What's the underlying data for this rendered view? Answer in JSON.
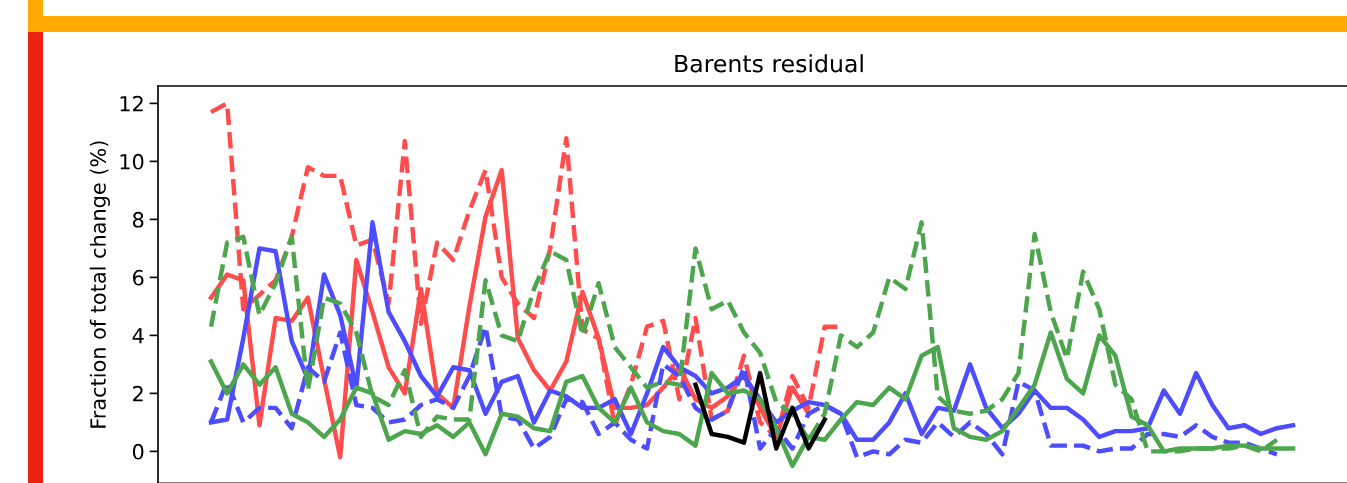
{
  "chart_data": {
    "type": "line",
    "title": "Barents residual",
    "ylabel": "Fraction of total change (%)",
    "categories": [
      null,
      null,
      null,
      null,
      null,
      null,
      null,
      null,
      null,
      null,
      null,
      null,
      null,
      null,
      null,
      null,
      null,
      null,
      null,
      null,
      null,
      null,
      null,
      null,
      null,
      null,
      null,
      null,
      null,
      null,
      null,
      null,
      null,
      null,
      null,
      null,
      null,
      null,
      null,
      null,
      null,
      null,
      null,
      null,
      null,
      null,
      null,
      null,
      null,
      null,
      null,
      null,
      null,
      null,
      null,
      null,
      null,
      null,
      null,
      null,
      null,
      null,
      null,
      null,
      null,
      null,
      null,
      null
    ],
    "ylim": [
      -1.1,
      12.6
    ],
    "yticks": [
      0,
      2,
      4,
      6,
      8,
      10,
      12
    ],
    "tick_labels": "y",
    "series": [
      {
        "color": "#ff4d4d",
        "line_style": "solid",
        "values": [
          5.3,
          6.1,
          5.9,
          0.9,
          4.6,
          4.5,
          5.3,
          2.5,
          -0.2,
          6.6,
          4.8,
          2.9,
          2.0,
          5.6,
          2.0,
          1.5,
          5.0,
          8.1,
          9.7,
          3.9,
          2.8,
          2.1,
          3.1,
          5.5,
          3.9,
          1.5,
          1.5,
          1.6,
          2.2,
          2.9,
          1.8,
          1.5,
          1.9,
          2.7,
          1.5,
          0.5,
          2.2,
          1.3,
          null,
          null,
          null,
          null,
          null,
          null,
          null,
          null,
          null,
          null,
          null,
          null,
          null,
          null,
          null,
          null,
          null,
          null,
          null,
          null,
          null,
          null,
          null,
          null,
          null,
          null,
          null,
          null,
          null,
          null
        ]
      },
      {
        "color": "#ff4d4d",
        "line_style": "dashed",
        "values": [
          11.7,
          12.0,
          4.9,
          5.4,
          5.9,
          7.4,
          9.8,
          9.5,
          9.5,
          7.1,
          7.3,
          5.1,
          10.7,
          4.4,
          7.2,
          6.6,
          8.3,
          9.7,
          6.0,
          5.1,
          4.6,
          7.0,
          10.8,
          4.2,
          3.9,
          0.9,
          2.3,
          4.3,
          4.5,
          1.8,
          4.6,
          1.1,
          1.4,
          3.3,
          1.0,
          0.5,
          2.6,
          1.5,
          4.3,
          4.3,
          null,
          null,
          null,
          null,
          null,
          null,
          null,
          null,
          null,
          null,
          null,
          null,
          null,
          null,
          null,
          null,
          null,
          null,
          null,
          null,
          null,
          null,
          null,
          null,
          null,
          null,
          null,
          null
        ]
      },
      {
        "color": "#4d4dff",
        "line_style": "solid",
        "values": [
          1.0,
          1.1,
          3.9,
          7.0,
          6.9,
          3.8,
          2.5,
          6.1,
          4.7,
          2.2,
          7.9,
          4.8,
          3.8,
          2.6,
          1.9,
          2.9,
          2.8,
          1.3,
          2.4,
          2.6,
          1.0,
          2.1,
          1.9,
          1.5,
          1.5,
          1.8,
          0.6,
          2.0,
          3.6,
          2.9,
          2.6,
          2.0,
          2.2,
          2.6,
          1.8,
          1.0,
          1.4,
          1.7,
          1.6,
          1.3,
          0.4,
          0.4,
          1.0,
          2.0,
          0.6,
          1.5,
          1.4,
          3.0,
          1.5,
          0.8,
          1.3,
          2.1,
          1.5,
          1.5,
          1.1,
          0.5,
          0.7,
          0.7,
          0.8,
          2.1,
          1.3,
          2.7,
          1.6,
          0.8,
          0.9,
          0.6,
          0.8,
          0.9
        ]
      },
      {
        "color": "#4d4dff",
        "line_style": "dashed",
        "values": [
          1.0,
          2.4,
          1.0,
          1.5,
          1.5,
          0.8,
          2.9,
          2.4,
          4.1,
          1.6,
          1.5,
          1.0,
          1.1,
          1.6,
          1.8,
          1.5,
          2.6,
          4.3,
          1.2,
          1.1,
          0.1,
          0.5,
          1.8,
          1.7,
          0.6,
          1.0,
          0.4,
          0.1,
          3.0,
          2.6,
          1.5,
          1.1,
          1.4,
          2.9,
          0.1,
          0.8,
          0.1,
          1.3,
          1.6,
          1.3,
          -0.2,
          0.0,
          -0.1,
          0.4,
          0.3,
          1.0,
          0.5,
          1.0,
          0.6,
          -0.1,
          2.4,
          2.1,
          0.2,
          0.2,
          0.2,
          0.0,
          0.1,
          0.1,
          0.6,
          0.6,
          0.5,
          0.9,
          0.5,
          0.3,
          0.3,
          0.1,
          -0.1,
          null
        ]
      },
      {
        "color": "#4da64d",
        "line_style": "solid",
        "values": [
          3.1,
          2.0,
          3.0,
          2.3,
          2.9,
          1.3,
          1.0,
          0.5,
          1.1,
          2.2,
          2.0,
          0.4,
          0.7,
          0.6,
          0.9,
          0.5,
          1.0,
          -0.1,
          1.3,
          1.2,
          0.8,
          0.7,
          2.4,
          2.6,
          1.5,
          1.0,
          2.2,
          1.0,
          0.7,
          0.6,
          0.2,
          2.7,
          2.0,
          2.1,
          1.8,
          0.8,
          -0.5,
          0.5,
          0.4,
          1.1,
          1.7,
          1.6,
          2.2,
          1.8,
          3.3,
          3.6,
          0.8,
          0.5,
          0.4,
          0.7,
          1.5,
          2.3,
          4.1,
          2.5,
          2.0,
          4.0,
          3.3,
          1.2,
          0.9,
          0.0,
          0.1,
          0.1,
          0.1,
          0.2,
          0.2,
          0.1,
          0.1,
          0.1
        ]
      },
      {
        "color": "#4da64d",
        "line_style": "dashed",
        "values": [
          4.3,
          7.2,
          7.4,
          4.7,
          5.8,
          7.4,
          2.1,
          5.3,
          5.1,
          4.1,
          1.9,
          1.6,
          2.8,
          0.5,
          1.2,
          1.1,
          1.1,
          5.9,
          4.0,
          3.8,
          5.6,
          6.9,
          6.6,
          4.0,
          5.8,
          3.6,
          2.9,
          2.2,
          2.4,
          2.3,
          7.0,
          4.9,
          5.2,
          4.1,
          3.4,
          1.7,
          1.3,
          0.4,
          1.3,
          4.0,
          3.6,
          4.1,
          6.0,
          5.6,
          7.9,
          1.9,
          1.4,
          1.3,
          1.4,
          1.8,
          2.7,
          7.5,
          4.8,
          3.2,
          6.2,
          4.9,
          2.3,
          1.8,
          0.0,
          0.0,
          0.0,
          0.1,
          0.1,
          0.1,
          0.2,
          0.0,
          0.4,
          null
        ]
      },
      {
        "color": "#000000",
        "line_style": "solid",
        "values": [
          null,
          null,
          null,
          null,
          null,
          null,
          null,
          null,
          null,
          null,
          null,
          null,
          null,
          null,
          null,
          null,
          null,
          null,
          null,
          null,
          null,
          null,
          null,
          null,
          null,
          null,
          null,
          null,
          null,
          null,
          2.3,
          0.6,
          0.5,
          0.3,
          2.7,
          0.1,
          1.5,
          0.1,
          1.1,
          null,
          null,
          null,
          null,
          null,
          null,
          null,
          null,
          null,
          null,
          null,
          null,
          null,
          null,
          null,
          null,
          null,
          null,
          null,
          null,
          null,
          null,
          null,
          null,
          null,
          null,
          null,
          null,
          null
        ]
      }
    ]
  }
}
